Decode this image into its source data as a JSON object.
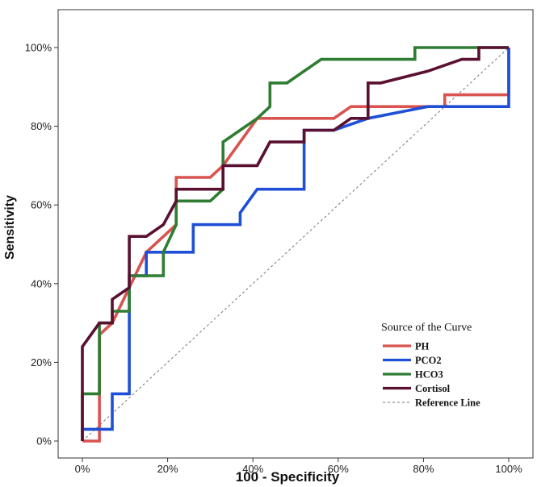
{
  "chart_data": {
    "type": "line",
    "xlabel": "100 - Specificity",
    "ylabel": "Sensitivity",
    "xlim": [
      0,
      100
    ],
    "ylim": [
      0,
      100
    ],
    "x_ticks": [
      "0%",
      "20%",
      "40%",
      "60%",
      "80%",
      "100%"
    ],
    "y_ticks": [
      "0%",
      "20%",
      "40%",
      "60%",
      "80%",
      "100%"
    ],
    "grid": false,
    "legend": {
      "title": "Source of the Curve",
      "placement": "bottom-right"
    },
    "series": [
      {
        "name": "PH",
        "color": "#d9534f",
        "points": [
          [
            0,
            0
          ],
          [
            4,
            0
          ],
          [
            4,
            27
          ],
          [
            7,
            30
          ],
          [
            11,
            39
          ],
          [
            15,
            48
          ],
          [
            22,
            55
          ],
          [
            22,
            67
          ],
          [
            30,
            67
          ],
          [
            33,
            70
          ],
          [
            41,
            82
          ],
          [
            59,
            82
          ],
          [
            63,
            85
          ],
          [
            85,
            85
          ],
          [
            85,
            88
          ],
          [
            100,
            88
          ],
          [
            100,
            100
          ]
        ]
      },
      {
        "name": "PCO2",
        "color": "#1f4fd6",
        "points": [
          [
            0,
            0
          ],
          [
            0,
            3
          ],
          [
            7,
            3
          ],
          [
            7,
            12
          ],
          [
            11,
            12
          ],
          [
            11,
            42
          ],
          [
            15,
            42
          ],
          [
            15,
            48
          ],
          [
            26,
            48
          ],
          [
            26,
            55
          ],
          [
            37,
            55
          ],
          [
            37,
            58
          ],
          [
            41,
            64
          ],
          [
            52,
            64
          ],
          [
            52,
            79
          ],
          [
            59,
            79
          ],
          [
            67,
            82
          ],
          [
            81,
            85
          ],
          [
            100,
            85
          ],
          [
            100,
            100
          ]
        ]
      },
      {
        "name": "HCO3",
        "color": "#2e7d32",
        "points": [
          [
            0,
            0
          ],
          [
            0,
            12
          ],
          [
            4,
            12
          ],
          [
            4,
            30
          ],
          [
            7,
            30
          ],
          [
            7,
            33
          ],
          [
            11,
            33
          ],
          [
            11,
            42
          ],
          [
            19,
            42
          ],
          [
            19,
            48
          ],
          [
            22,
            55
          ],
          [
            22,
            61
          ],
          [
            30,
            61
          ],
          [
            33,
            64
          ],
          [
            33,
            76
          ],
          [
            41,
            82
          ],
          [
            44,
            85
          ],
          [
            44,
            91
          ],
          [
            48,
            91
          ],
          [
            56,
            97
          ],
          [
            78,
            97
          ],
          [
            78,
            100
          ],
          [
            100,
            100
          ]
        ]
      },
      {
        "name": "Cortisol",
        "color": "#5a1030",
        "points": [
          [
            0,
            0
          ],
          [
            0,
            24
          ],
          [
            4,
            30
          ],
          [
            7,
            30
          ],
          [
            7,
            36
          ],
          [
            11,
            39
          ],
          [
            11,
            52
          ],
          [
            15,
            52
          ],
          [
            19,
            55
          ],
          [
            22,
            61
          ],
          [
            22,
            64
          ],
          [
            33,
            64
          ],
          [
            33,
            70
          ],
          [
            41,
            70
          ],
          [
            44,
            76
          ],
          [
            52,
            76
          ],
          [
            52,
            79
          ],
          [
            59,
            79
          ],
          [
            63,
            82
          ],
          [
            67,
            82
          ],
          [
            67,
            91
          ],
          [
            70,
            91
          ],
          [
            81,
            94
          ],
          [
            89,
            97
          ],
          [
            93,
            97
          ],
          [
            93,
            100
          ],
          [
            100,
            100
          ]
        ]
      },
      {
        "name": "Reference Line",
        "color": "#777777",
        "dashed": true,
        "points": [
          [
            0,
            0
          ],
          [
            100,
            100
          ]
        ]
      }
    ]
  }
}
